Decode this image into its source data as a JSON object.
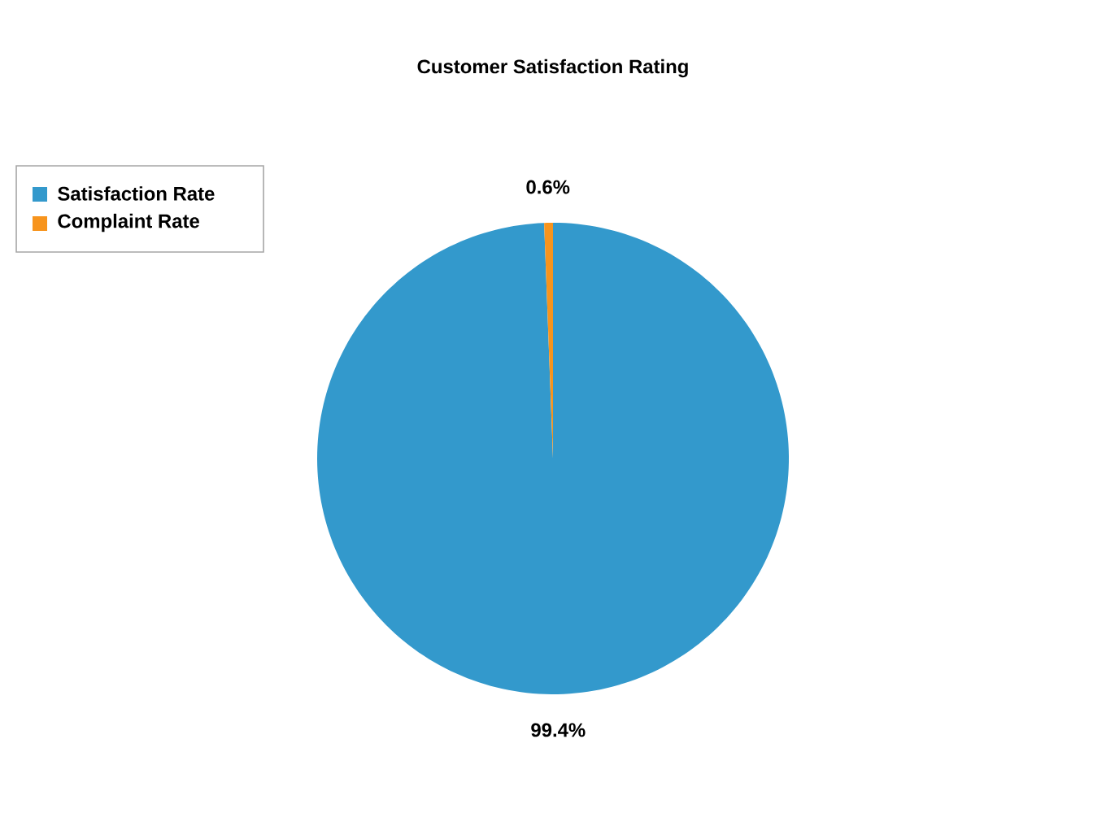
{
  "chart_data": {
    "type": "pie",
    "title": "Customer Satisfaction Rating",
    "categories": [
      "Satisfaction Rate",
      "Complaint Rate"
    ],
    "values": [
      99.4,
      0.6
    ],
    "value_labels": [
      "99.4%",
      "0.6%"
    ],
    "colors": [
      "#3399cc",
      "#f7941d"
    ],
    "legend": "top left"
  }
}
